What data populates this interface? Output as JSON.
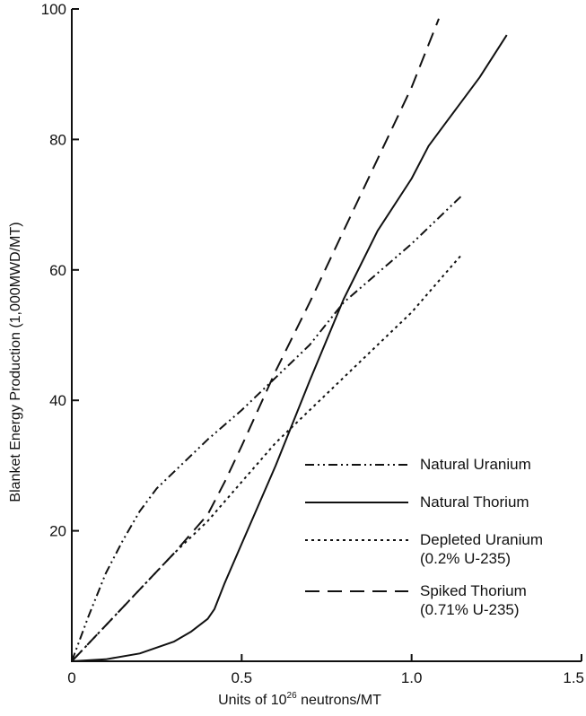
{
  "chart_data": {
    "type": "line",
    "title": "",
    "xlabel": "Units of 10",
    "xlabel_superscript": "26",
    "xlabel_suffix": " neutrons/MT",
    "ylabel": "Blanket Energy Production (1,000MWD/MT)",
    "xlim": [
      0,
      1.5
    ],
    "ylim": [
      0,
      100
    ],
    "x_ticks": [
      0,
      0.5,
      1.0,
      1.5
    ],
    "x_tick_labels": [
      "0",
      "0.5",
      "1.0",
      "1.5"
    ],
    "y_ticks": [
      20,
      40,
      60,
      80,
      100
    ],
    "y_tick_labels": [
      "20",
      "40",
      "60",
      "80",
      "100"
    ],
    "grid": false,
    "legend_position": "lower-right",
    "series": [
      {
        "name": "Natural Uranium",
        "dash": "dash-dot-dot",
        "x": [
          0,
          0.05,
          0.1,
          0.15,
          0.2,
          0.25,
          0.3,
          0.4,
          0.5,
          0.6,
          0.7,
          0.8,
          0.9,
          1.0,
          1.1,
          1.15
        ],
        "y": [
          0,
          7,
          13.5,
          18.5,
          23,
          26.5,
          29,
          34,
          38.5,
          43.5,
          48.5,
          55,
          59.5,
          64,
          69,
          71.5
        ]
      },
      {
        "name": "Natural Thorium",
        "dash": "solid",
        "x": [
          0,
          0.1,
          0.2,
          0.3,
          0.35,
          0.4,
          0.42,
          0.45,
          0.5,
          0.6,
          0.7,
          0.8,
          0.9,
          1.0,
          1.05,
          1.1,
          1.2,
          1.28
        ],
        "y": [
          0,
          0.3,
          1.2,
          3,
          4.5,
          6.5,
          8,
          12,
          18,
          30,
          43,
          55.5,
          66,
          74,
          79,
          82.5,
          89.5,
          96
        ]
      },
      {
        "name": "Depleted Uranium",
        "name_note": "(0.2% U-235)",
        "dash": "dotted",
        "x": [
          0,
          0.1,
          0.2,
          0.3,
          0.4,
          0.5,
          0.6,
          0.7,
          0.8,
          0.9,
          1.0,
          1.1,
          1.15
        ],
        "y": [
          0,
          5.5,
          11,
          16.5,
          21.5,
          27.5,
          33.5,
          38.5,
          43.5,
          48.5,
          53.5,
          59.5,
          62.5
        ]
      },
      {
        "name": "Spiked Thorium",
        "name_note": "(0.71% U-235)",
        "dash": "dashed",
        "x": [
          0,
          0.1,
          0.2,
          0.3,
          0.4,
          0.45,
          0.5,
          0.6,
          0.7,
          0.8,
          0.9,
          1.0,
          1.08
        ],
        "y": [
          0,
          5.5,
          11,
          16.5,
          22.5,
          27.5,
          33,
          44.5,
          55,
          66,
          77,
          88,
          98.5
        ]
      }
    ]
  }
}
